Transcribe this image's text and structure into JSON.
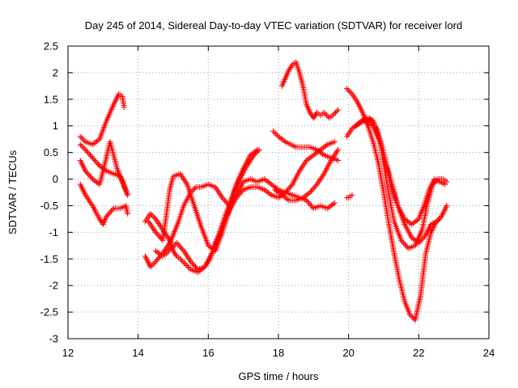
{
  "chart_data": {
    "type": "scatter",
    "title": "Day 245 of 2014, Sidereal Day-to-day VTEC variation (SDTVAR) for receiver lord",
    "xlabel": "GPS time / hours",
    "ylabel": "SDTVAR / TECUs",
    "xlim": [
      12,
      24
    ],
    "ylim": [
      -3,
      2.5
    ],
    "xticks": [
      "12",
      "14",
      "16",
      "18",
      "20",
      "22",
      "24"
    ],
    "yticks": [
      "-3",
      "-2.5",
      "-2",
      "-1.5",
      "-1",
      "-0.5",
      "0",
      "0.5",
      "1",
      "1.5",
      "2",
      "2.5"
    ],
    "xtick_values": [
      12,
      14,
      16,
      18,
      20,
      22,
      24
    ],
    "ytick_values": [
      -3,
      -2.5,
      -2,
      -1.5,
      -1,
      -0.5,
      0,
      0.5,
      1,
      1.5,
      2,
      2.5
    ],
    "grid": true,
    "marker": "+",
    "color": "#ff0000",
    "series": [
      {
        "name": "",
        "x": [
          12.35,
          12.5,
          12.7,
          12.9,
          13.1,
          13.3,
          13.45,
          13.55,
          13.6
        ],
        "y": [
          0.8,
          0.7,
          0.65,
          0.75,
          1.1,
          1.4,
          1.6,
          1.55,
          1.35
        ]
      },
      {
        "name": "",
        "x": [
          12.35,
          12.5,
          12.7,
          12.9,
          13.1,
          13.3,
          13.5,
          13.6,
          13.7
        ],
        "y": [
          0.65,
          0.55,
          0.4,
          0.25,
          0.15,
          0.1,
          0.05,
          -0.1,
          -0.3
        ]
      },
      {
        "name": "",
        "x": [
          12.35,
          12.5,
          12.7,
          12.9,
          13.0,
          13.2,
          13.4,
          13.6,
          13.7
        ],
        "y": [
          0.35,
          0.15,
          0.0,
          -0.1,
          0.15,
          0.7,
          0.2,
          -0.15,
          -0.3
        ]
      },
      {
        "name": "",
        "x": [
          12.35,
          12.5,
          12.7,
          12.9,
          13.0,
          13.1,
          13.3,
          13.5,
          13.65,
          13.7
        ],
        "y": [
          -0.1,
          -0.3,
          -0.5,
          -0.75,
          -0.85,
          -0.7,
          -0.55,
          -0.55,
          -0.5,
          -0.65
        ]
      },
      {
        "name": "",
        "x": [
          14.2,
          14.35,
          14.5,
          14.7,
          14.9,
          15.0,
          15.15,
          15.3,
          15.5,
          15.65,
          15.8,
          16.0,
          16.2,
          16.4,
          16.6,
          16.8,
          17.0,
          17.2,
          17.4,
          17.6,
          17.8,
          18.0,
          18.2,
          18.4,
          18.6,
          18.8,
          19.0,
          19.2,
          19.4,
          19.6
        ],
        "y": [
          -1.45,
          -1.65,
          -1.55,
          -1.4,
          -1.2,
          -1.05,
          -0.8,
          -0.5,
          -0.25,
          -0.15,
          -0.15,
          -0.1,
          -0.15,
          -0.35,
          -0.5,
          -0.3,
          -0.05,
          0.0,
          -0.05,
          0.0,
          -0.1,
          -0.2,
          -0.25,
          -0.3,
          -0.35,
          -0.4,
          -0.55,
          -0.5,
          -0.55,
          -0.45
        ]
      },
      {
        "name": "",
        "x": [
          14.2,
          14.35,
          14.5,
          14.7,
          14.9,
          15.0,
          15.1,
          15.2,
          15.35,
          15.5,
          15.7,
          15.9,
          16.05,
          16.2,
          16.4,
          16.6,
          16.8,
          17.0,
          17.2,
          17.4,
          17.6,
          17.8,
          18.0,
          18.2,
          18.4,
          18.6,
          18.8,
          19.0,
          19.2,
          19.4,
          19.6
        ],
        "y": [
          -0.8,
          -0.65,
          -0.75,
          -0.95,
          -1.15,
          -1.35,
          -1.45,
          -1.5,
          -1.6,
          -1.7,
          -1.75,
          -1.65,
          -1.5,
          -1.2,
          -0.9,
          -0.6,
          -0.35,
          -0.2,
          -0.15,
          -0.15,
          -0.2,
          -0.3,
          -0.35,
          -0.25,
          -0.1,
          0.15,
          0.35,
          0.45,
          0.55,
          0.65,
          0.7
        ]
      },
      {
        "name": "",
        "x": [
          14.3,
          14.5,
          14.7,
          14.8,
          14.9,
          15.0,
          15.2,
          15.4,
          15.6,
          15.8,
          16.0,
          16.2,
          16.4,
          16.6,
          16.8,
          17.0,
          17.2,
          17.4
        ],
        "y": [
          -0.8,
          -1.0,
          -1.15,
          -0.7,
          -0.2,
          0.05,
          0.1,
          -0.1,
          -0.5,
          -0.9,
          -1.25,
          -1.35,
          -1.0,
          -0.55,
          -0.1,
          0.2,
          0.45,
          0.55
        ]
      },
      {
        "name": "",
        "x": [
          14.5,
          14.7,
          14.8,
          14.95,
          15.1,
          15.3,
          15.5,
          15.7,
          15.9,
          16.1,
          16.3,
          16.5,
          16.7,
          16.9,
          17.1,
          17.3,
          17.45
        ],
        "y": [
          -1.35,
          -1.45,
          -1.4,
          -1.3,
          -1.2,
          -1.35,
          -1.55,
          -1.7,
          -1.65,
          -1.4,
          -1.05,
          -0.65,
          -0.3,
          0.0,
          0.25,
          0.45,
          0.55
        ]
      },
      {
        "name": "",
        "x": [
          17.9,
          18.1,
          18.3,
          18.5,
          18.7,
          18.9,
          19.1,
          19.3,
          19.5,
          19.7
        ],
        "y": [
          -0.2,
          -0.3,
          -0.4,
          -0.4,
          -0.35,
          -0.25,
          -0.1,
          0.1,
          0.35,
          0.55
        ]
      },
      {
        "name": "",
        "x": [
          17.85,
          18.0,
          18.2,
          18.35,
          18.5,
          18.7,
          18.9,
          19.1,
          19.3,
          19.5,
          19.7
        ],
        "y": [
          0.9,
          0.8,
          0.7,
          0.65,
          0.6,
          0.6,
          0.6,
          0.55,
          0.45,
          0.4,
          0.35
        ]
      },
      {
        "name": "",
        "x": [
          18.1,
          18.2,
          18.3,
          18.4,
          18.5,
          18.6,
          18.7,
          18.8,
          18.9,
          19.0,
          19.1,
          19.2,
          19.3,
          19.45,
          19.55,
          19.7
        ],
        "y": [
          1.75,
          1.9,
          2.05,
          2.15,
          2.2,
          2.0,
          1.75,
          1.4,
          1.25,
          1.15,
          1.25,
          1.2,
          1.25,
          1.15,
          1.2,
          1.3
        ]
      },
      {
        "name": "",
        "x": [
          19.95,
          20.0,
          20.1
        ],
        "y": [
          -0.35,
          -0.35,
          -0.3
        ]
      },
      {
        "name": "",
        "x": [
          19.95,
          20.1,
          20.25,
          20.4,
          20.55,
          20.7,
          20.85,
          21.0,
          21.15,
          21.3,
          21.45,
          21.6,
          21.75,
          21.9,
          22.05,
          22.2,
          22.35,
          22.5,
          22.65,
          22.8
        ],
        "y": [
          1.7,
          1.6,
          1.45,
          1.25,
          1.0,
          0.7,
          0.3,
          -0.25,
          -0.85,
          -1.4,
          -1.9,
          -2.3,
          -2.55,
          -2.65,
          -2.2,
          -1.4,
          -1.0,
          -0.8,
          -0.7,
          -0.5
        ]
      },
      {
        "name": "",
        "x": [
          19.95,
          20.1,
          20.3,
          20.5,
          20.7,
          20.9,
          21.0,
          21.15,
          21.3,
          21.5,
          21.7,
          21.9,
          22.1,
          22.25,
          22.4,
          22.55,
          22.7,
          22.8
        ],
        "y": [
          0.8,
          0.95,
          1.05,
          1.1,
          1.0,
          0.7,
          0.3,
          -0.3,
          -0.8,
          -1.15,
          -1.3,
          -1.25,
          -0.95,
          -0.45,
          -0.1,
          0.0,
          0.0,
          -0.05
        ]
      },
      {
        "name": "",
        "x": [
          20.2,
          20.4,
          20.6,
          20.8,
          21.0,
          21.2,
          21.4,
          21.6,
          21.8,
          22.0,
          22.15,
          22.3,
          22.45,
          22.6,
          22.75
        ],
        "y": [
          1.0,
          1.1,
          1.15,
          0.95,
          0.5,
          -0.1,
          -0.5,
          -0.75,
          -0.85,
          -0.75,
          -0.5,
          -0.2,
          0.0,
          -0.05,
          -0.1
        ]
      },
      {
        "name": "",
        "x": [
          20.3,
          20.5,
          20.7,
          20.85,
          21.0,
          21.2,
          21.4,
          21.6,
          21.8,
          22.0,
          22.2,
          22.35,
          22.5,
          22.6
        ],
        "y": [
          1.05,
          1.15,
          1.1,
          0.8,
          0.4,
          0.0,
          -0.5,
          -0.85,
          -1.1,
          -1.2,
          -1.05,
          -0.85,
          -0.8,
          -0.75
        ]
      }
    ]
  }
}
